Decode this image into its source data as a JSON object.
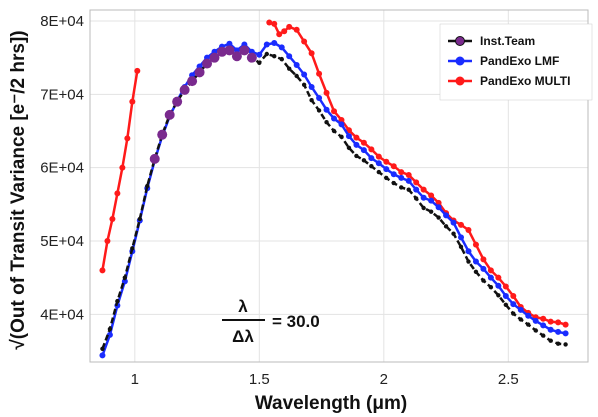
{
  "chart_data": {
    "type": "line",
    "xlabel": "Wavelength (μm)",
    "ylabel": "√(Out of Transit Variance [e⁻/2 hrs])",
    "xlim": [
      0.82,
      2.82
    ],
    "ylim": [
      33500,
      81500
    ],
    "x_ticks": [
      1,
      1.5,
      2,
      2.5
    ],
    "x_tick_labels": [
      "1",
      "1.5",
      "2",
      "2.5"
    ],
    "y_ticks": [
      40000,
      50000,
      60000,
      70000,
      80000
    ],
    "y_tick_labels": [
      "4E+04",
      "5E+04",
      "6E+04",
      "7E+04",
      "8E+04"
    ],
    "grid": true,
    "legend_position": "top-right",
    "annotation": {
      "numerator": "λ",
      "denominator": "Δλ",
      "value": "= 30.0"
    },
    "series": [
      {
        "name": "Inst.Team",
        "color": "#111111",
        "marker_color": "#7a2a8e",
        "x": [
          0.87,
          0.9,
          0.93,
          0.96,
          0.99,
          1.02,
          1.05,
          1.08,
          1.11,
          1.14,
          1.17,
          1.2,
          1.23,
          1.26,
          1.29,
          1.32,
          1.35,
          1.38,
          1.41,
          1.44,
          1.47,
          1.5,
          1.53,
          1.56,
          1.59,
          1.62,
          1.65,
          1.68,
          1.71,
          1.74,
          1.77,
          1.8,
          1.83,
          1.86,
          1.89,
          1.92,
          1.95,
          1.98,
          2.01,
          2.04,
          2.07,
          2.1,
          2.13,
          2.16,
          2.19,
          2.22,
          2.25,
          2.28,
          2.31,
          2.34,
          2.37,
          2.4,
          2.43,
          2.46,
          2.49,
          2.52,
          2.55,
          2.58,
          2.61,
          2.64,
          2.67,
          2.7,
          2.73
        ],
        "values": [
          35300,
          38000,
          41800,
          45000,
          49000,
          53000,
          57500,
          61200,
          64500,
          67200,
          69000,
          70600,
          71800,
          73000,
          74200,
          75000,
          75800,
          76000,
          75200,
          76000,
          75000,
          74300,
          75500,
          75200,
          74800,
          73500,
          72500,
          71300,
          69200,
          67800,
          66200,
          65000,
          64200,
          62700,
          61600,
          61000,
          60200,
          59400,
          58600,
          57900,
          57300,
          57000,
          55800,
          54500,
          54000,
          53200,
          52000,
          51000,
          49200,
          47200,
          45800,
          44600,
          43700,
          42600,
          41300,
          40100,
          39300,
          38600,
          37800,
          37100,
          36400,
          36000,
          35900
        ]
      },
      {
        "name": "PandExo LMF",
        "color": "#1a2cff",
        "x": [
          0.87,
          0.9,
          0.93,
          0.96,
          0.99,
          1.02,
          1.05,
          1.08,
          1.11,
          1.14,
          1.17,
          1.2,
          1.23,
          1.26,
          1.29,
          1.32,
          1.35,
          1.38,
          1.41,
          1.44,
          1.47,
          1.5,
          1.53,
          1.56,
          1.59,
          1.62,
          1.65,
          1.68,
          1.71,
          1.74,
          1.77,
          1.8,
          1.83,
          1.86,
          1.89,
          1.92,
          1.95,
          1.98,
          2.01,
          2.04,
          2.07,
          2.1,
          2.13,
          2.16,
          2.19,
          2.22,
          2.25,
          2.28,
          2.31,
          2.34,
          2.37,
          2.4,
          2.43,
          2.46,
          2.49,
          2.52,
          2.55,
          2.58,
          2.61,
          2.64,
          2.67,
          2.7,
          2.73
        ],
        "values": [
          34400,
          37200,
          41200,
          44500,
          48600,
          52800,
          57200,
          61000,
          64300,
          67000,
          69100,
          71000,
          72600,
          73800,
          75000,
          75800,
          76500,
          76900,
          76000,
          76800,
          75800,
          75400,
          76800,
          77000,
          76400,
          75200,
          74000,
          72700,
          71000,
          69500,
          67900,
          66700,
          65900,
          64300,
          63100,
          62400,
          61300,
          60600,
          59800,
          59100,
          58600,
          58200,
          57000,
          55900,
          55500,
          54600,
          53500,
          52500,
          50500,
          48600,
          47200,
          46200,
          45000,
          43900,
          42500,
          41400,
          40600,
          39800,
          39100,
          38500,
          37900,
          37600,
          37400
        ]
      },
      {
        "name": "PandExo MULTI",
        "color": "#ff1a1a",
        "x": [
          0.87,
          0.89,
          0.91,
          0.93,
          0.95,
          0.97,
          0.99,
          1.01,
          1.54,
          1.56,
          1.58,
          1.6,
          1.62,
          1.65,
          1.68,
          1.71,
          1.74,
          1.77,
          1.8,
          1.83,
          1.86,
          1.89,
          1.92,
          1.95,
          1.98,
          2.01,
          2.04,
          2.07,
          2.1,
          2.13,
          2.16,
          2.19,
          2.22,
          2.25,
          2.28,
          2.31,
          2.34,
          2.37,
          2.4,
          2.43,
          2.46,
          2.49,
          2.52,
          2.55,
          2.58,
          2.61,
          2.64,
          2.67,
          2.7,
          2.73
        ],
        "values": [
          46000,
          50000,
          53000,
          56500,
          60000,
          64000,
          69000,
          73200,
          79800,
          79600,
          78200,
          78600,
          79200,
          78800,
          77200,
          75600,
          72800,
          70200,
          67700,
          66500,
          65100,
          64100,
          63400,
          62500,
          61500,
          60800,
          60200,
          59400,
          59000,
          58000,
          57000,
          56200,
          55200,
          53800,
          52800,
          52200,
          51500,
          49500,
          47500,
          46000,
          45000,
          43800,
          42500,
          41000,
          40200,
          39600,
          39400,
          39000,
          38900,
          38600
        ]
      }
    ]
  }
}
